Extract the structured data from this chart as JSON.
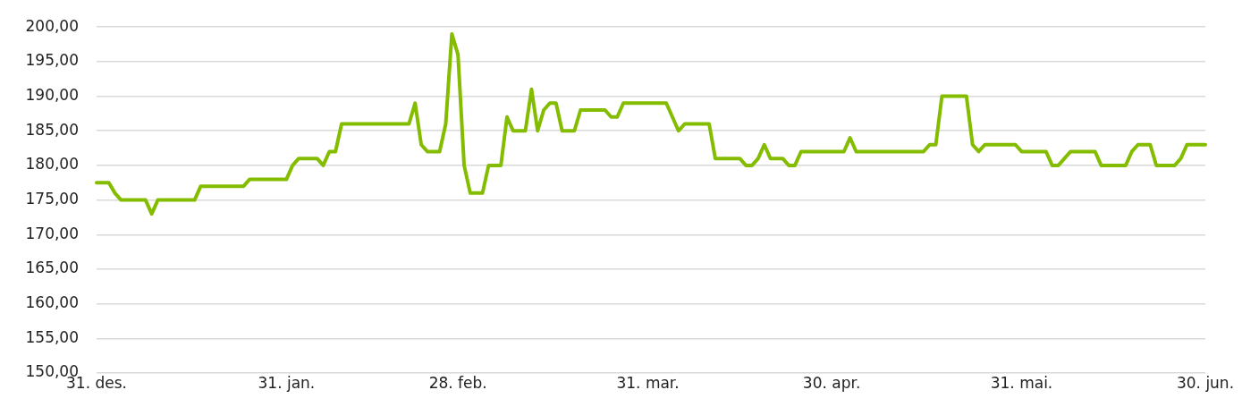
{
  "chart_data": {
    "type": "line",
    "categories": [
      "31. des.",
      null,
      null,
      null,
      null,
      null,
      null,
      null,
      null,
      null,
      null,
      null,
      null,
      null,
      null,
      null,
      null,
      null,
      null,
      null,
      null,
      null,
      null,
      null,
      null,
      null,
      null,
      null,
      null,
      null,
      null,
      "31. jan.",
      null,
      null,
      null,
      null,
      null,
      null,
      null,
      null,
      null,
      null,
      null,
      null,
      null,
      null,
      null,
      null,
      null,
      null,
      null,
      null,
      null,
      null,
      null,
      null,
      null,
      null,
      null,
      "28. feb.",
      null,
      null,
      null,
      null,
      null,
      null,
      null,
      null,
      null,
      null,
      null,
      null,
      null,
      null,
      null,
      null,
      null,
      null,
      null,
      null,
      null,
      null,
      null,
      null,
      null,
      null,
      null,
      null,
      null,
      null,
      "31. mar.",
      null,
      null,
      null,
      null,
      null,
      null,
      null,
      null,
      null,
      null,
      null,
      null,
      null,
      null,
      null,
      null,
      null,
      null,
      null,
      null,
      null,
      null,
      null,
      null,
      null,
      null,
      null,
      null,
      null,
      "30. apr.",
      null,
      null,
      null,
      null,
      null,
      null,
      null,
      null,
      null,
      null,
      null,
      null,
      null,
      null,
      null,
      null,
      null,
      null,
      null,
      null,
      null,
      null,
      null,
      null,
      null,
      null,
      null,
      null,
      null,
      null,
      "31. mai.",
      null,
      null,
      null,
      null,
      null,
      null,
      null,
      null,
      null,
      null,
      null,
      null,
      null,
      null,
      null,
      null,
      null,
      null,
      null,
      null,
      null,
      null,
      null,
      null,
      null,
      null,
      null,
      null,
      null,
      "30. jun."
    ],
    "series": [
      {
        "color": "#84bd00",
        "values": [
          177.5,
          177.5,
          177.5,
          176,
          175,
          175,
          175,
          175,
          175,
          173,
          175,
          175,
          175,
          175,
          175,
          175,
          175,
          177,
          177,
          177,
          177,
          177,
          177,
          177,
          177,
          178,
          178,
          178,
          178,
          178,
          178,
          178,
          180,
          181,
          181,
          181,
          181,
          180,
          182,
          182,
          186,
          186,
          186,
          186,
          186,
          186,
          186,
          186,
          186,
          186,
          186,
          186,
          189,
          183,
          182,
          182,
          182,
          186,
          199,
          196,
          180,
          176,
          176,
          176,
          180,
          180,
          180,
          187,
          185,
          185,
          185,
          191,
          185,
          188,
          189,
          189,
          185,
          185,
          185,
          188,
          188,
          188,
          188,
          188,
          187,
          187,
          189,
          189,
          189,
          189,
          189,
          189,
          189,
          189,
          187,
          185,
          186,
          186,
          186,
          186,
          186,
          181,
          181,
          181,
          181,
          181,
          180,
          180,
          181,
          183,
          181,
          181,
          181,
          180,
          180,
          182,
          182,
          182,
          182,
          182,
          182,
          182,
          182,
          184,
          182,
          182,
          182,
          182,
          182,
          182,
          182,
          182,
          182,
          182,
          182,
          182,
          183,
          183,
          190,
          190,
          190,
          190,
          190,
          183,
          182,
          183,
          183,
          183,
          183,
          183,
          183,
          182,
          182,
          182,
          182,
          182,
          180,
          180,
          181,
          182,
          182,
          182,
          182,
          182,
          180,
          180,
          180,
          180,
          180,
          182,
          183,
          183,
          183,
          180,
          180,
          180,
          180,
          181,
          183,
          183,
          183,
          183
        ]
      }
    ],
    "ylim": [
      150,
      200
    ],
    "yticks": [
      {
        "value": 150,
        "label": "150,00"
      },
      {
        "value": 155,
        "label": "155,00"
      },
      {
        "value": 160,
        "label": "160,00"
      },
      {
        "value": 165,
        "label": "165,00"
      },
      {
        "value": 170,
        "label": "170,00"
      },
      {
        "value": 175,
        "label": "175,00"
      },
      {
        "value": 180,
        "label": "180,00"
      },
      {
        "value": 185,
        "label": "185,00"
      },
      {
        "value": 190,
        "label": "190,00"
      },
      {
        "value": 195,
        "label": "195,00"
      },
      {
        "value": 200,
        "label": "200,00"
      }
    ],
    "grid": "y",
    "legend": false,
    "marker": "none",
    "line_style": "solid"
  }
}
